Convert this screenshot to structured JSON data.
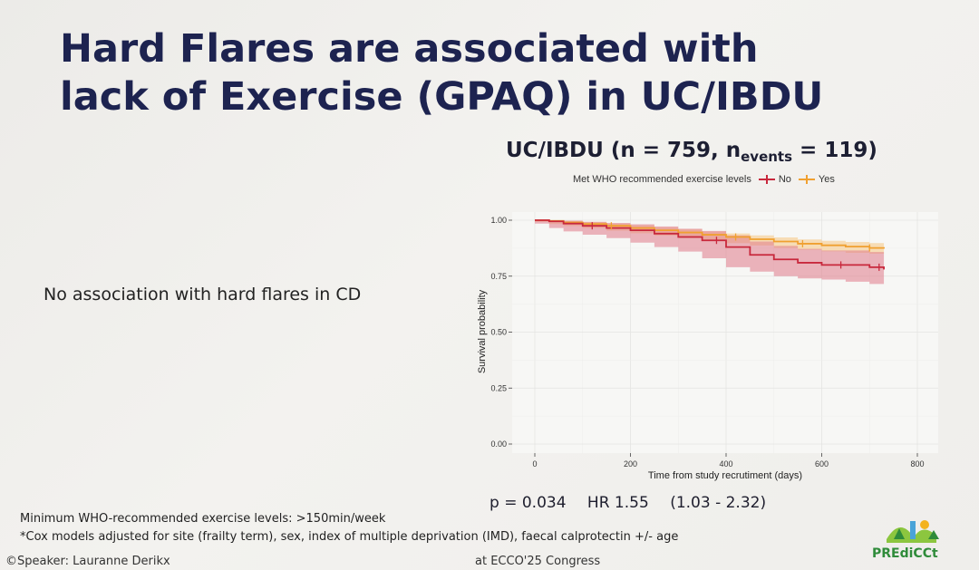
{
  "slide": {
    "title_line1": "Hard Flares are associated with",
    "title_line2": "lack of Exercise (GPAQ) in UC/IBDU",
    "cd_note": "No association with hard flares in CD",
    "footnote_1": "Minimum WHO-recommended exercise levels: >150min/week",
    "footnote_2": "*Cox models adjusted for site (frailty term), sex, index of multiple deprivation (IMD), faecal calprotectin +/- age",
    "speaker": "©Speaker: Lauranne Derikx",
    "congress": "at ECCO'25 Congress",
    "logo_text": "PREdiCCt"
  },
  "chart_title": {
    "main": "UC/IBDU (n = 759, n",
    "sub": "events",
    "tail": " = 119)"
  },
  "stats": {
    "p": "p = 0.034",
    "hr": "HR 1.55",
    "ci": "(1.03 - 2.32)"
  },
  "chart_data": {
    "type": "line",
    "title": "UC/IBDU (n = 759, n_events = 119)",
    "xlabel": "Time from study recrutiment (days)",
    "ylabel": "Survival probability",
    "xlim": [
      0,
      800
    ],
    "ylim": [
      0,
      1
    ],
    "xticks": [
      0,
      200,
      400,
      600,
      800
    ],
    "xtick_labels": [
      "0",
      "200",
      "400",
      "600",
      "800"
    ],
    "yticks": [
      0,
      0.25,
      0.5,
      0.75,
      1
    ],
    "ytick_labels": [
      "0.00",
      "0.25",
      "0.50",
      "0.75",
      "1.00"
    ],
    "grid": true,
    "legend": {
      "title": "Met WHO recommended exercise levels",
      "position": "top",
      "entries": [
        "No",
        "Yes"
      ]
    },
    "colors": {
      "No": "#c8283c",
      "Yes": "#f0a030",
      "No_band": "#e07a88",
      "Yes_band": "#f6c98a"
    },
    "series": [
      {
        "name": "No",
        "x": [
          0,
          30,
          60,
          100,
          150,
          200,
          250,
          300,
          350,
          400,
          450,
          500,
          550,
          600,
          650,
          700,
          730
        ],
        "y": [
          1.0,
          0.995,
          0.985,
          0.975,
          0.965,
          0.955,
          0.94,
          0.925,
          0.91,
          0.88,
          0.845,
          0.825,
          0.81,
          0.8,
          0.8,
          0.79,
          0.78
        ],
        "lower": [
          1.0,
          0.985,
          0.965,
          0.95,
          0.935,
          0.92,
          0.9,
          0.88,
          0.86,
          0.83,
          0.79,
          0.77,
          0.75,
          0.74,
          0.735,
          0.725,
          0.715
        ],
        "upper": [
          1.0,
          1.0,
          0.998,
          0.993,
          0.988,
          0.982,
          0.972,
          0.962,
          0.952,
          0.932,
          0.905,
          0.885,
          0.872,
          0.865,
          0.865,
          0.858,
          0.85
        ]
      },
      {
        "name": "Yes",
        "x": [
          0,
          30,
          60,
          100,
          150,
          200,
          250,
          300,
          350,
          400,
          450,
          500,
          550,
          600,
          650,
          700,
          730
        ],
        "y": [
          1.0,
          0.997,
          0.99,
          0.983,
          0.975,
          0.965,
          0.955,
          0.945,
          0.935,
          0.925,
          0.915,
          0.905,
          0.895,
          0.888,
          0.882,
          0.876,
          0.873
        ],
        "lower": [
          1.0,
          0.993,
          0.983,
          0.974,
          0.965,
          0.953,
          0.942,
          0.931,
          0.92,
          0.909,
          0.898,
          0.887,
          0.876,
          0.868,
          0.861,
          0.854,
          0.85
        ],
        "upper": [
          1.0,
          1.0,
          0.997,
          0.992,
          0.985,
          0.977,
          0.968,
          0.959,
          0.95,
          0.941,
          0.932,
          0.923,
          0.914,
          0.908,
          0.903,
          0.898,
          0.896
        ]
      }
    ],
    "censor_marks": [
      {
        "series": "No",
        "x": [
          120,
          380,
          640,
          720
        ]
      },
      {
        "series": "Yes",
        "x": [
          160,
          420,
          560,
          700
        ]
      }
    ]
  }
}
